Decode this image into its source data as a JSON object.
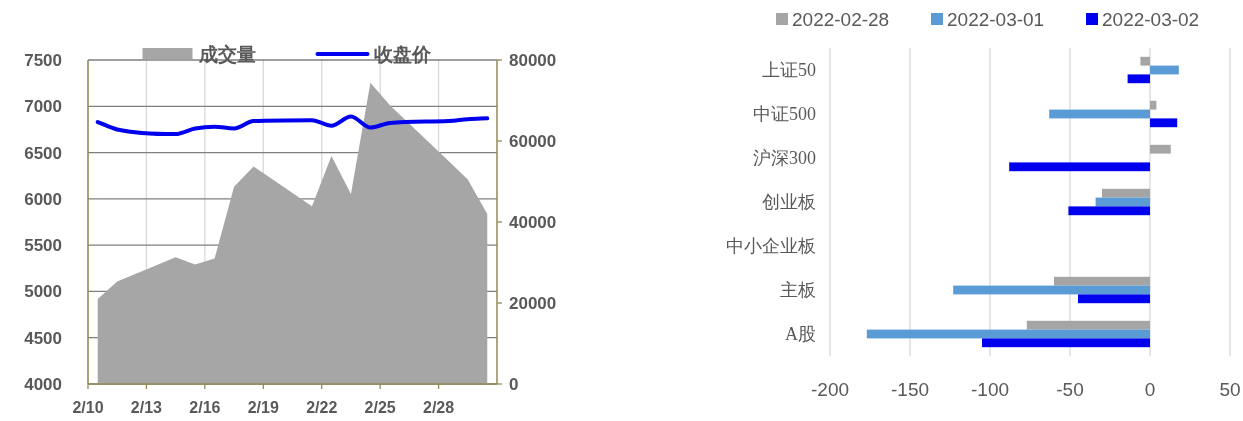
{
  "chart_data": [
    {
      "type": "area",
      "x": [
        "2022-02-10T12:00",
        "2022-02-11T12:00",
        "2022-02-14T12:00",
        "2022-02-15T12:00",
        "2022-02-16T12:00",
        "2022-02-17T12:00",
        "2022-02-18T12:00",
        "2022-02-21T12:00",
        "2022-02-22T12:00",
        "2022-02-23T12:00",
        "2022-02-24T12:00",
        "2022-02-25T12:00",
        "2022-02-28T12:00",
        "2022-03-01T12:00",
        "2022-03-02T12:00"
      ],
      "series": [
        {
          "name": "成交量",
          "type": "area",
          "axis": "y2",
          "color": "#a6a6a6",
          "values": [
            21000,
            25300,
            31300,
            29500,
            31000,
            48700,
            53700,
            43900,
            56300,
            46900,
            74400,
            68800,
            55100,
            50500,
            42000
          ]
        },
        {
          "name": "收盘价",
          "type": "line",
          "color": "#0000ee",
          "values": [
            6830,
            6750,
            6700,
            6760,
            6780,
            6760,
            6840,
            6850,
            6790,
            6890,
            6770,
            6820,
            6840,
            6860,
            6870
          ]
        }
      ],
      "xlim": [
        "2022-02-10",
        "2022-03-03"
      ],
      "xticks": [
        {
          "value": "2022-02-10",
          "label": "2/10"
        },
        {
          "value": "2022-02-13",
          "label": "2/13"
        },
        {
          "value": "2022-02-16",
          "label": "2/16"
        },
        {
          "value": "2022-02-19",
          "label": "2/19"
        },
        {
          "value": "2022-02-22",
          "label": "2/22"
        },
        {
          "value": "2022-02-25",
          "label": "2/25"
        },
        {
          "value": "2022-02-28",
          "label": "2/28"
        }
      ],
      "ylim": [
        4000,
        7500
      ],
      "yticks": [
        4000,
        4500,
        5000,
        5500,
        6000,
        6500,
        7000,
        7500
      ],
      "y2lim": [
        0,
        80000
      ],
      "y2ticks": [
        0,
        20000,
        40000,
        60000,
        80000
      ],
      "grid": true,
      "legend": "top"
    },
    {
      "type": "bar",
      "orientation": "horizontal",
      "categories": [
        "上证50",
        "中证500",
        "沪深300",
        "创业板",
        "中小企业板",
        "主板",
        "A股"
      ],
      "series": [
        {
          "name": "2022-02-28",
          "color": "#a5a5a5",
          "values": [
            -6,
            4,
            13,
            -30,
            null,
            -60,
            -77
          ]
        },
        {
          "name": "2022-03-01",
          "color": "#5b9bd5",
          "values": [
            18,
            -63,
            null,
            -34,
            null,
            -123,
            -177
          ]
        },
        {
          "name": "2022-03-02",
          "color": "#0000ee",
          "values": [
            -14,
            17,
            -88,
            -51,
            null,
            -45,
            -105
          ]
        }
      ],
      "xlim": [
        -200,
        50
      ],
      "xticks": [
        -200,
        -150,
        -100,
        -50,
        0,
        50
      ],
      "grid": "x",
      "legend": "top"
    }
  ]
}
